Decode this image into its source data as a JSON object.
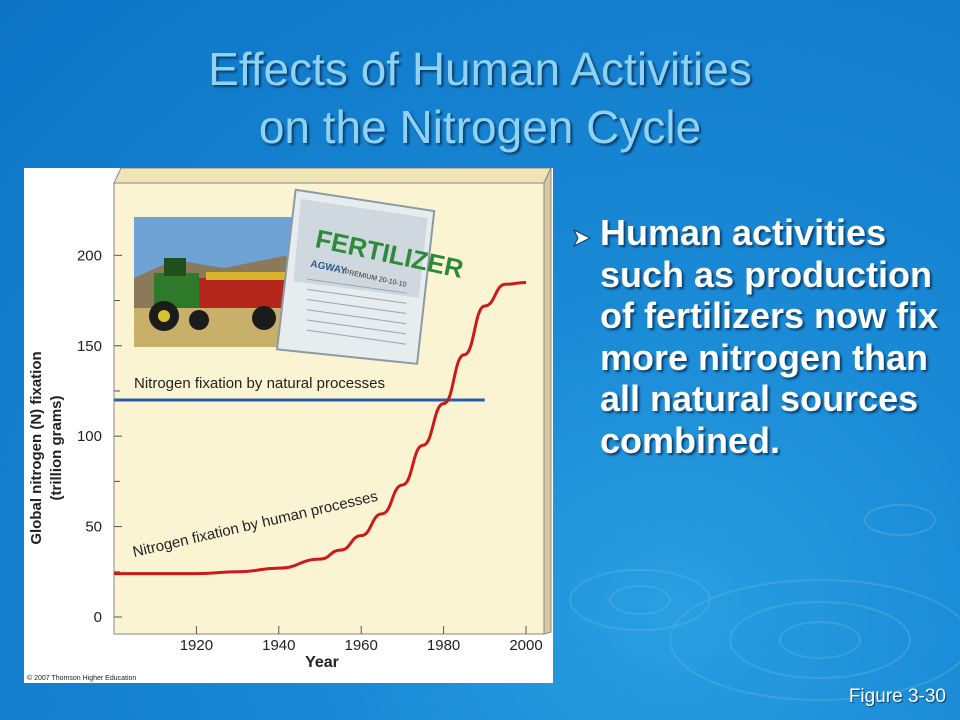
{
  "slide": {
    "title_line1": "Effects of Human Activities",
    "title_line2": "on the Nitrogen Cycle",
    "bullet": "Human activities such as production of fertilizers now fix more nitrogen than all natural sources combined.",
    "figure_ref": "Figure 3-30",
    "bullet_icon": "arrow-bullet-icon"
  },
  "colors": {
    "background": "#1a8ad6",
    "title": "#8fd2f4",
    "chart_bg": "#fbf4d3",
    "natural_line": "#2a5fa8",
    "human_line": "#cc1a1a"
  },
  "chart_data": {
    "type": "line",
    "ylabel_line1": "Global nitrogen (N) fixation",
    "ylabel_line2": "(trillion grams)",
    "xlabel": "Year",
    "copyright": "© 2007 Thomson Higher Education",
    "yticks": [
      0,
      50,
      100,
      150,
      200
    ],
    "xticks": [
      1920,
      1940,
      1960,
      1980,
      2000
    ],
    "xlim": [
      1900,
      2000
    ],
    "ylim": [
      0,
      240
    ],
    "grid": false,
    "series": [
      {
        "name": "Nitrogen fixation by natural processes",
        "x": [
          1900,
          1990
        ],
        "values": [
          120,
          120
        ]
      },
      {
        "name": "Nitrogen fixation by human processes",
        "x": [
          1900,
          1910,
          1920,
          1930,
          1940,
          1950,
          1955,
          1960,
          1965,
          1970,
          1975,
          1980,
          1985,
          1990,
          1995,
          2000
        ],
        "values": [
          24,
          24,
          24,
          25,
          27,
          32,
          37,
          45,
          57,
          73,
          95,
          118,
          145,
          172,
          184,
          185
        ]
      }
    ],
    "inset_labels": {
      "fertilizer_bag": "FERTILIZER",
      "bag_brand": "AGWAY",
      "bag_subtext": "PREMIUM 20-10-10"
    }
  }
}
